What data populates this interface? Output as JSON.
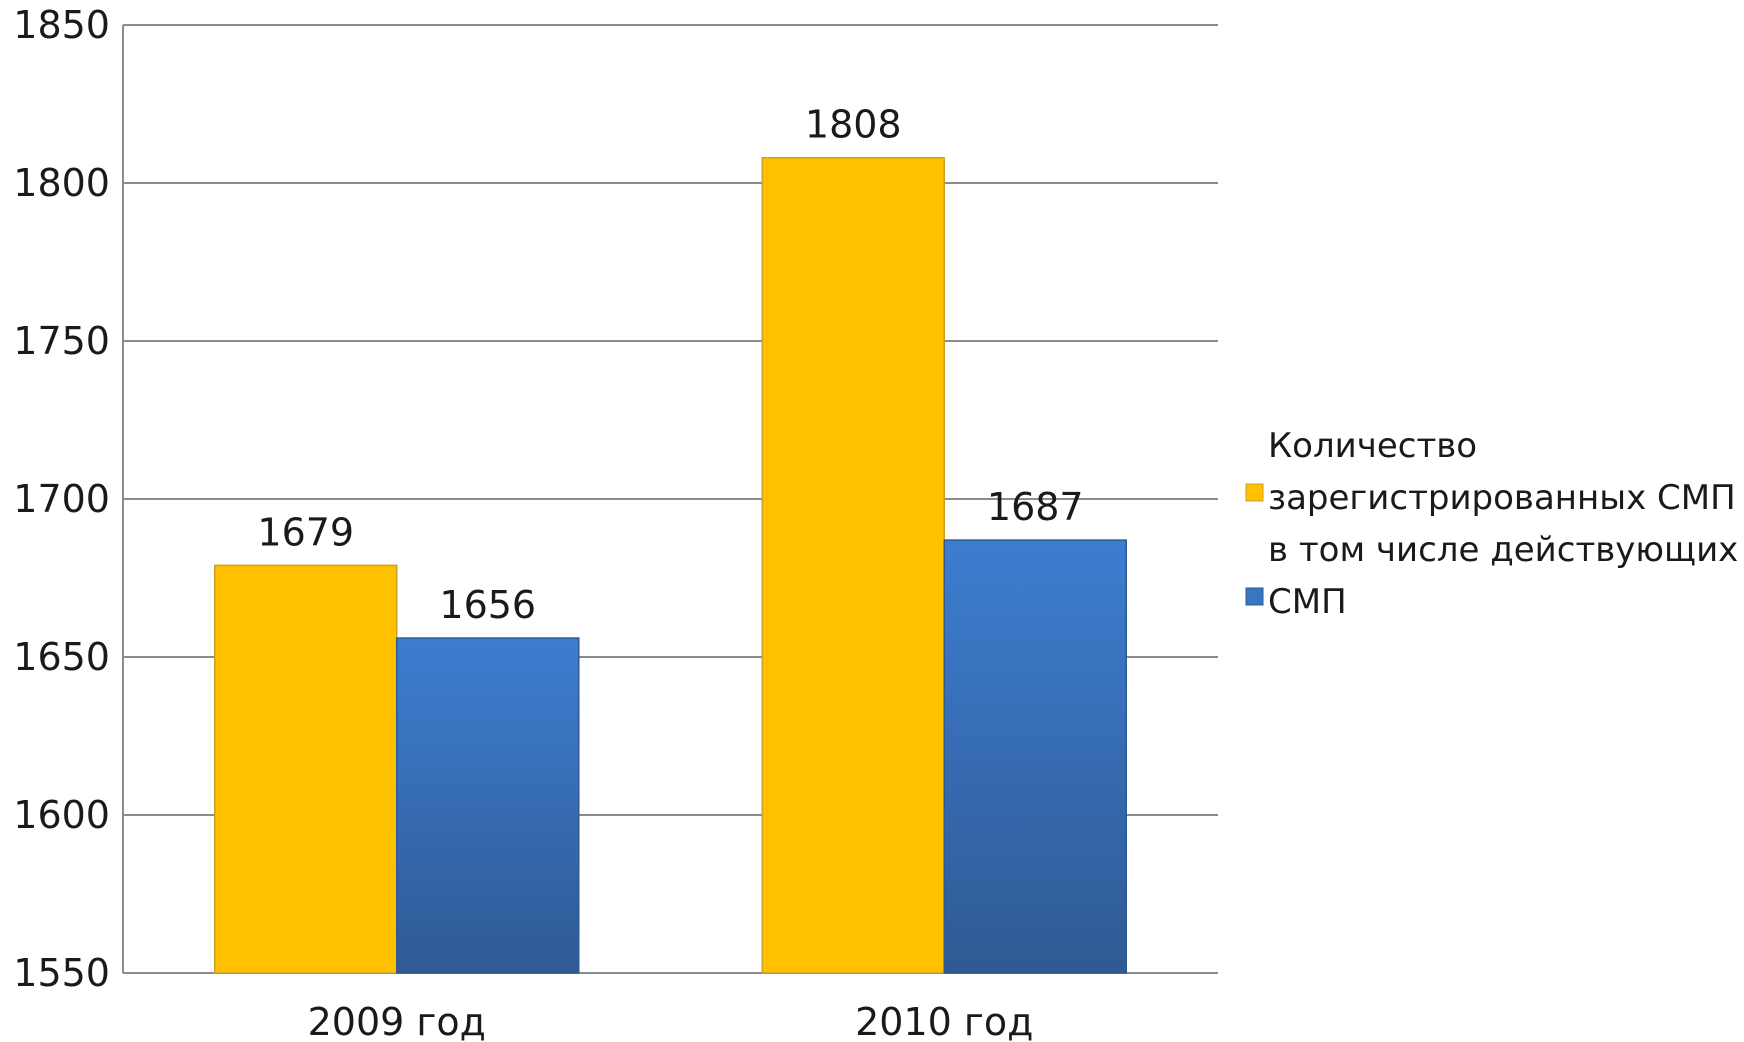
{
  "chart_data": {
    "type": "bar",
    "categories": [
      "2009 год",
      "2010 год"
    ],
    "series": [
      {
        "name": "Количество зарегистрированных СМП",
        "values": [
          1679,
          1808
        ],
        "color": "#FFC000"
      },
      {
        "name": "в том числе действующих СМП",
        "values": [
          1656,
          1687
        ],
        "color": "#3A75C4"
      }
    ],
    "data_labels": [
      [
        "1679",
        "1808"
      ],
      [
        "1656",
        "1687"
      ]
    ],
    "ylim": [
      1550,
      1850
    ],
    "yticks": [
      1550,
      1600,
      1650,
      1700,
      1750,
      1800,
      1850
    ],
    "ytick_labels": [
      "1550",
      "1600",
      "1650",
      "1700",
      "1750",
      "1800",
      "1850"
    ],
    "grid": true,
    "legend_position": "right",
    "legend_lines": [
      [
        "Количество",
        "зарегистрированных СМП"
      ],
      [
        "в том числе действующих",
        "СМП"
      ]
    ]
  }
}
